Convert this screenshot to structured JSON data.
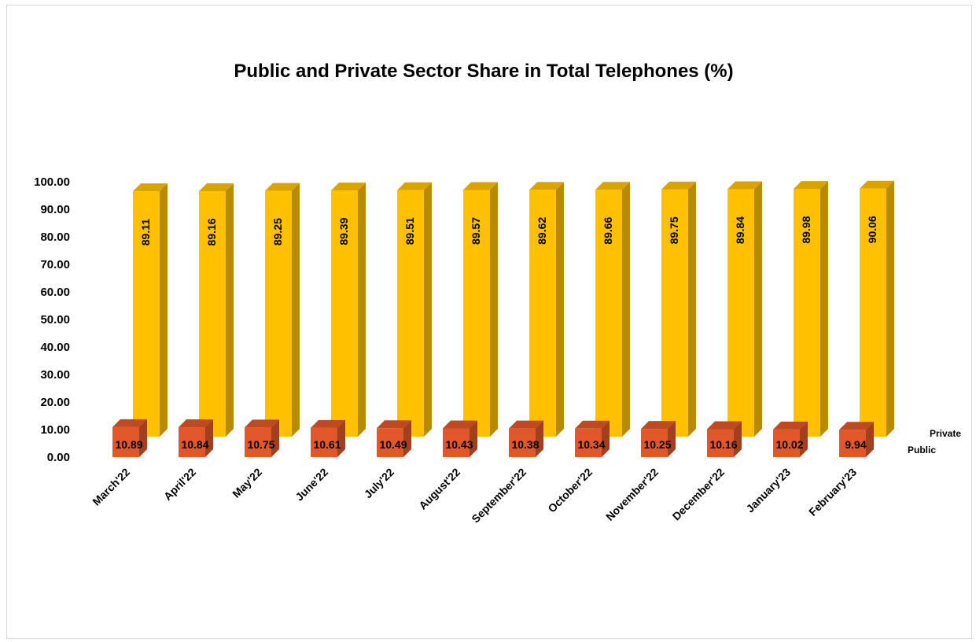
{
  "chart_data": {
    "type": "bar",
    "title": "Public and Private Sector Share in Total Telephones (%)",
    "categories": [
      "March'22",
      "April'22",
      "May'22",
      "June'22",
      "July'22",
      "August'22",
      "September'22",
      "October'22",
      "November'22",
      "December'22",
      "January'23",
      "February'23"
    ],
    "series": [
      {
        "name": "Public",
        "color": "#e0572a",
        "values": [
          10.89,
          10.84,
          10.75,
          10.61,
          10.49,
          10.43,
          10.38,
          10.34,
          10.25,
          10.16,
          10.02,
          9.94
        ],
        "labels": [
          "10.89",
          "10.84",
          "10.75",
          "10.61",
          "10.49",
          "10.43",
          "10.38",
          "10.34",
          "10.25",
          "10.16",
          "10.02",
          "9.94"
        ]
      },
      {
        "name": "Private",
        "color": "#ffc000",
        "values": [
          89.11,
          89.16,
          89.25,
          89.39,
          89.51,
          89.57,
          89.62,
          89.66,
          89.75,
          89.84,
          89.98,
          90.06
        ],
        "labels": [
          "89.11",
          "89.16",
          "89.25",
          "89.39",
          "89.51",
          "89.57",
          "89.62",
          "89.66",
          "89.75",
          "89.84",
          "89.98",
          "90.06"
        ]
      }
    ],
    "yticks": [
      "0.00",
      "10.00",
      "20.00",
      "30.00",
      "40.00",
      "50.00",
      "60.00",
      "70.00",
      "80.00",
      "90.00",
      "100.00"
    ],
    "ylim": [
      0,
      100
    ],
    "xlabel": "",
    "ylabel": "",
    "grid": false,
    "chart_style": "3d-column",
    "legend": "series labels at right of depth axis"
  }
}
